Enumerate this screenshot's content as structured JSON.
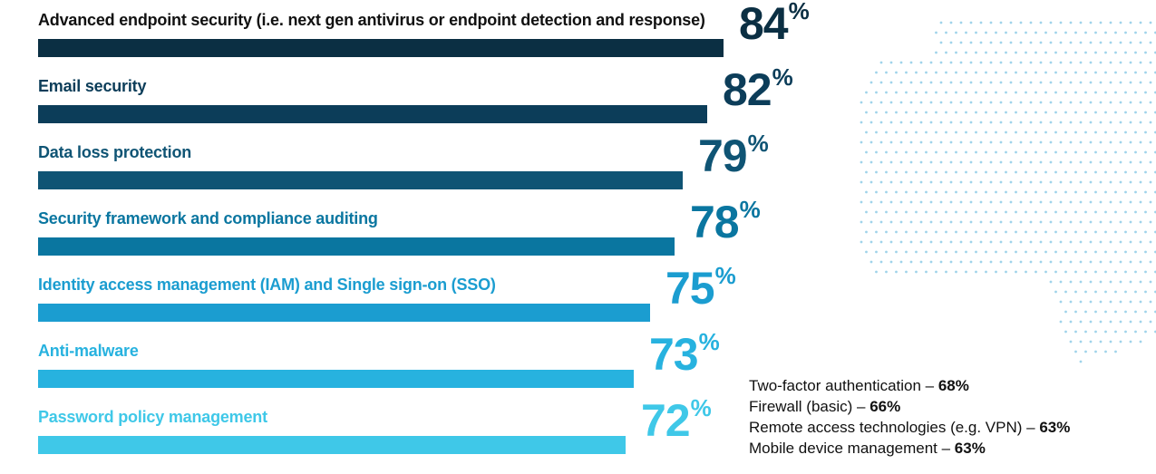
{
  "chart_data": {
    "type": "bar",
    "orientation": "horizontal",
    "title": "",
    "xlabel": "",
    "ylabel": "",
    "xlim": [
      0,
      100
    ],
    "unit": "%",
    "categories": [
      "Advanced endpoint security (i.e. next gen antivirus or endpoint detection and response)",
      "Email security",
      "Data loss protection",
      "Security framework and compliance auditing",
      "Identity access management (IAM) and Single sign-on (SSO)",
      "Anti-malware",
      "Password policy management"
    ],
    "values": [
      84,
      82,
      79,
      78,
      75,
      73,
      72
    ],
    "colors": [
      "#0b2f43",
      "#0c3d59",
      "#0f5474",
      "#0a76a0",
      "#1b9dd0",
      "#27b2df",
      "#3fc8e8"
    ],
    "additional_items": [
      {
        "label": "Two-factor authentication – ",
        "value": "68%"
      },
      {
        "label": "Firewall (basic) – ",
        "value": "66%"
      },
      {
        "label": "Remote access technologies (e.g. VPN) – ",
        "value": "63%"
      },
      {
        "label": "Mobile device management – ",
        "value": "63%"
      }
    ],
    "decor_color": "#9fd3ea"
  }
}
